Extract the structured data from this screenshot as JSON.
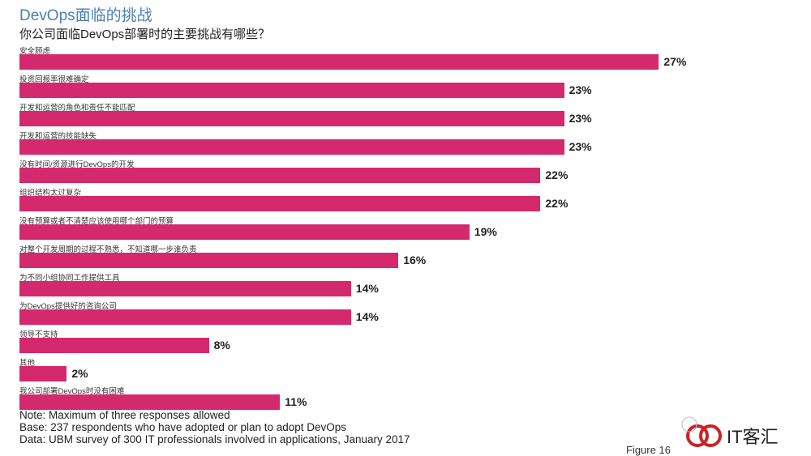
{
  "chart_data": {
    "type": "bar",
    "orientation": "horizontal",
    "title": "DevOps面临的挑战",
    "subtitle": "你公司面临DevOps部署时的主要挑战有哪些？",
    "categories": [
      "安全顾虑",
      "投资回报率很难确定",
      "开发和运营的角色和责任不能匹配",
      "开发和运营的技能缺失",
      "没有时间/资源进行DevOps的开发",
      "组织结构太过复杂",
      "没有预算或者不清楚应该使用哪个部门的预算",
      "对整个开发周期的过程不熟悉，不知道哪一步谁负责",
      "为不同小组协同工作提供工具",
      "为DevOps提供好的咨询公司",
      "领导不支持",
      "其他",
      "我公司部署DevOps时没有困难"
    ],
    "values": [
      27,
      23,
      23,
      23,
      22,
      22,
      19,
      16,
      14,
      14,
      8,
      2,
      11
    ],
    "value_labels": [
      "27%",
      "23%",
      "23%",
      "23%",
      "22%",
      "22%",
      "19%",
      "16%",
      "14%",
      "14%",
      "8%",
      "2%",
      "11%"
    ],
    "unit": "%",
    "bar_color": "#d4296d"
  },
  "notes": [
    "Note: Maximum of three responses allowed",
    "Base: 237 respondents who have adopted or plan to adopt DevOps",
    "Data: UBM survey of 300 IT professionals involved in applications, January 2017"
  ],
  "figure_label": "Figure 16",
  "watermark": "IT客汇"
}
